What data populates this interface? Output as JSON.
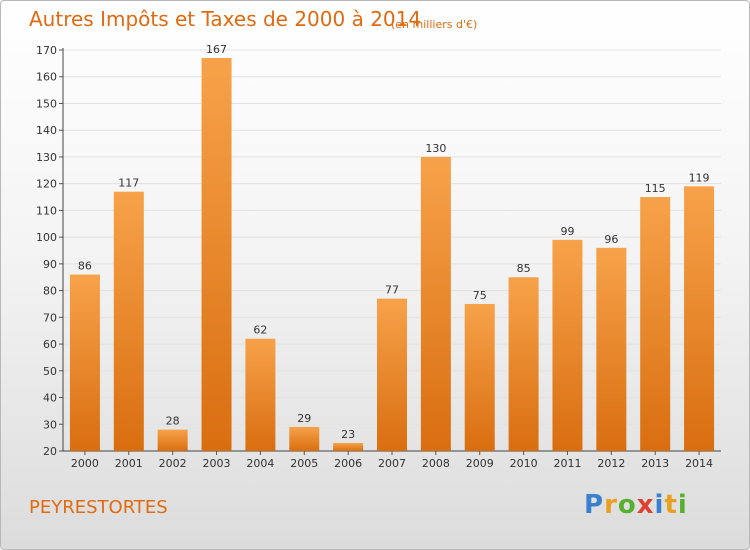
{
  "header": {
    "title": "Autres Impôts et Taxes de 2000 à 2014",
    "subtitle": "(en milliers d'€)"
  },
  "footer": {
    "commune": "PEYRESTORTES",
    "logo_letters": [
      "P",
      "r",
      "o",
      "x",
      "i",
      "t",
      "i"
    ],
    "logo_colors": [
      "#3a7fd0",
      "#e8a020",
      "#58b030",
      "#e04030",
      "#3a7fd0",
      "#e8a020",
      "#58b030"
    ]
  },
  "colors": {
    "bar_top": "#f7a24a",
    "bar_bottom": "#d96e10",
    "text_accent": "#e06a10"
  },
  "chart_data": {
    "type": "bar",
    "title": "Autres Impôts et Taxes de 2000 à 2014",
    "subtitle": "(en milliers d'€)",
    "categories": [
      "2000",
      "2001",
      "2002",
      "2003",
      "2004",
      "2005",
      "2006",
      "2007",
      "2008",
      "2009",
      "2010",
      "2011",
      "2012",
      "2013",
      "2014"
    ],
    "values": [
      86,
      117,
      28,
      167,
      62,
      29,
      23,
      77,
      130,
      75,
      85,
      99,
      96,
      115,
      119
    ],
    "ylim": [
      20,
      170
    ],
    "yticks": [
      20,
      30,
      40,
      50,
      60,
      70,
      80,
      90,
      100,
      110,
      120,
      130,
      140,
      150,
      160,
      170
    ],
    "grid": true,
    "legend": "none"
  }
}
